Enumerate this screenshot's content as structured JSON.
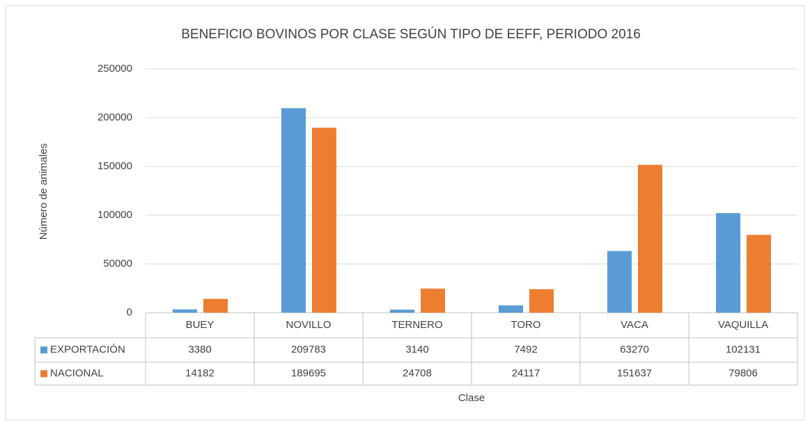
{
  "chart_data": {
    "type": "bar",
    "title": "BENEFICIO BOVINOS POR CLASE SEGÚN  TIPO DE EEFF, PERIODO 2016",
    "x_label": "Clase",
    "y_label": "Número de animales",
    "categories": [
      "BUEY",
      "NOVILLO",
      "TERNERO",
      "TORO",
      "VACA",
      "VAQUILLA"
    ],
    "series": [
      {
        "name": "EXPORTACIÓN",
        "color": "#5b9bd5",
        "values": [
          3380,
          209783,
          3140,
          7492,
          63270,
          102131
        ]
      },
      {
        "name": "NACIONAL",
        "color": "#ed7d31",
        "values": [
          14182,
          189695,
          24708,
          24117,
          151637,
          79806
        ]
      }
    ],
    "ylim": [
      0,
      250000
    ],
    "yticks": [
      0,
      50000,
      100000,
      150000,
      200000,
      250000
    ],
    "grid": true
  }
}
